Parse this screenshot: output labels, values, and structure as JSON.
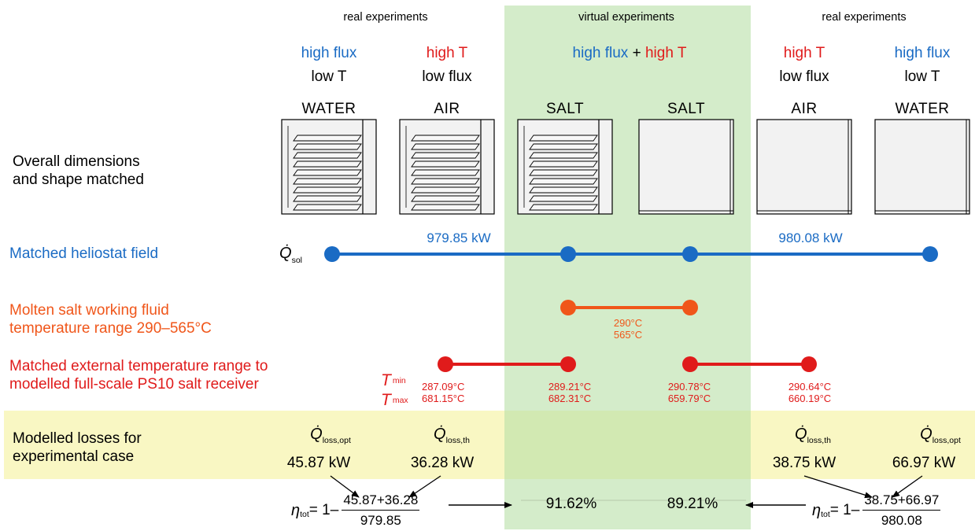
{
  "headers": {
    "left": "real experiments",
    "center": "virtual experiments",
    "right": "real experiments"
  },
  "columns": [
    {
      "line1": "high flux",
      "line2": "low T",
      "receiver": "WATER"
    },
    {
      "line1": "high T",
      "line2": "low flux",
      "receiver": "AIR"
    },
    {
      "line1": "high flux",
      "plus": "+",
      "line1b": "high T",
      "receiver": "SALT"
    },
    {
      "receiver": "SALT"
    },
    {
      "line1": "high T",
      "line2": "low flux",
      "receiver": "AIR"
    },
    {
      "line1": "high flux",
      "line2": "low T",
      "receiver": "WATER"
    }
  ],
  "rows": {
    "dimensions": {
      "label_line1": "Overall dimensions",
      "label_line2": "and shape matched"
    },
    "heliostat": {
      "label": "Matched heliostat field",
      "symbol": "Q̇",
      "symbol_sub": "sol",
      "value_left": "979.85 kW",
      "value_right": "980.08 kW"
    },
    "salt": {
      "label_line1": "Molten salt working fluid",
      "label_line2": "temperature range 290–565°C",
      "t1": "290°C",
      "t2": "565°C"
    },
    "external": {
      "label_line1": "Matched external temperature range to",
      "label_line2": "modelled full-scale PS10 salt receiver",
      "tmin": "T",
      "tmin_sub": "min",
      "tmax": "T",
      "tmax_sub": "max",
      "ranges": [
        {
          "min": "287.09°C",
          "max": "681.15°C"
        },
        {
          "min": "289.21°C",
          "max": "682.31°C"
        },
        {
          "min": "290.78°C",
          "max": "659.79°C"
        },
        {
          "min": "290.64°C",
          "max": "660.19°C"
        }
      ]
    },
    "losses": {
      "label_line1": "Modelled losses for",
      "label_line2": "experimental case",
      "items": [
        {
          "sym": "Q̇",
          "sub": "loss,opt",
          "value": "45.87 kW"
        },
        {
          "sym": "Q̇",
          "sub": "loss,th",
          "value": "36.28 kW"
        },
        {
          "sym": "Q̇",
          "sub": "loss,th",
          "value": "38.75 kW"
        },
        {
          "sym": "Q̇",
          "sub": "loss,opt",
          "value": "66.97 kW"
        }
      ]
    },
    "efficiency": {
      "eta": "η",
      "eta_sub": "tot",
      "left": {
        "prefix": "= 1–",
        "num": "45.87+36.28",
        "den": "979.85"
      },
      "right": {
        "prefix": "= 1–",
        "num": "38.75+66.97",
        "den": "980.08"
      },
      "result_left": "91.62%",
      "result_right": "89.21%"
    }
  },
  "colors": {
    "green_band": "#d3ecc8",
    "yellow_band": "#f9f7c3",
    "blue": "#1a6bc4",
    "red": "#e01b1b",
    "orange": "#f0561a"
  }
}
